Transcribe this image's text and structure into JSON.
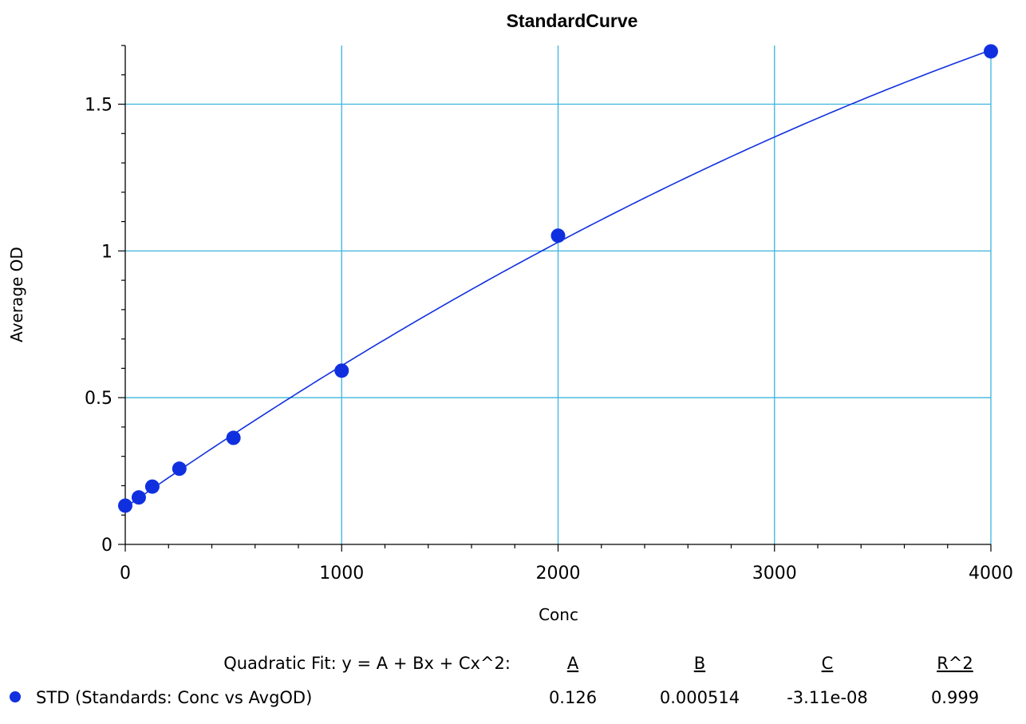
{
  "chart_data": {
    "type": "scatter",
    "title": "StandardCurve",
    "xlabel": "Conc",
    "ylabel": "Average OD",
    "xlim": [
      0,
      4000
    ],
    "ylim": [
      0,
      1.7
    ],
    "x_ticks": [
      0,
      1000,
      2000,
      3000,
      4000
    ],
    "x_tick_labels": [
      "0",
      "1000",
      "2000",
      "3000",
      "4000"
    ],
    "y_ticks": [
      0,
      0.5,
      1,
      1.5
    ],
    "y_tick_labels": [
      "0",
      "0.5",
      "1",
      "1.5"
    ],
    "grid": true,
    "colors": {
      "series": "#1030e0",
      "grid": "#3cb4dc",
      "axis": "#000000"
    },
    "series": [
      {
        "name": "STD (Standards: Conc vs AvgOD)",
        "x": [
          0,
          62.5,
          125,
          250,
          500,
          1000,
          2000,
          4000
        ],
        "y": [
          0.132,
          0.16,
          0.197,
          0.258,
          0.363,
          0.592,
          1.052,
          1.68
        ]
      }
    ],
    "fit": {
      "model": "quadratic",
      "A": 0.126,
      "B": 0.000514,
      "C": -3.11e-08
    }
  },
  "fit_table": {
    "label": "Quadratic Fit: y = A + Bx + Cx^2:",
    "headers": [
      "A",
      "B",
      "C",
      "R^2"
    ],
    "rows": [
      {
        "name": "STD (Standards: Conc vs AvgOD)",
        "values": [
          "0.126",
          "0.000514",
          "-3.11e-08",
          "0.999"
        ]
      }
    ]
  }
}
